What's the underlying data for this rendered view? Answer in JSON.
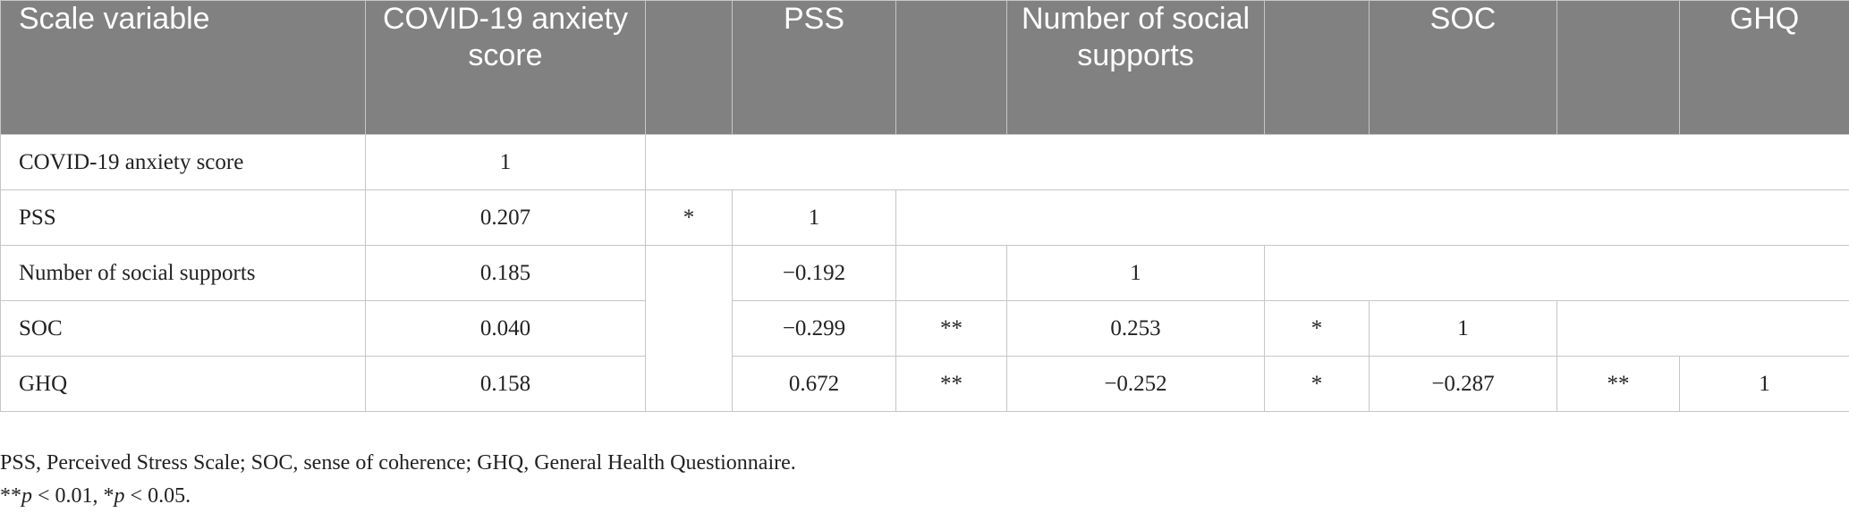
{
  "table": {
    "headers": [
      "Scale variable",
      "COVID-19 anxiety score",
      "",
      "PSS",
      "",
      "Number of social supports",
      "",
      "SOC",
      "",
      "GHQ"
    ],
    "rows": [
      {
        "label": "COVID-19 anxiety score",
        "anxiety": "1"
      },
      {
        "label": "PSS",
        "anxiety": "0.207",
        "anxiety_sig": "*",
        "pss": "1"
      },
      {
        "label": "Number of social supports",
        "anxiety": "0.185",
        "pss": "−0.192",
        "social": "1"
      },
      {
        "label": "SOC",
        "anxiety": "0.040",
        "pss": "−0.299",
        "pss_sig": "**",
        "social": "0.253",
        "social_sig": "*",
        "soc": "1"
      },
      {
        "label": "GHQ",
        "anxiety": "0.158",
        "pss": "0.672",
        "pss_sig": "**",
        "social": "−0.252",
        "social_sig": "*",
        "soc": "−0.287",
        "soc_sig": "**",
        "ghq": "1"
      }
    ]
  },
  "footnotes": {
    "abbreviations": "PSS, Perceived Stress Scale; SOC, sense of coherence; GHQ, General Health Questionnaire.",
    "sig_star2": "**",
    "sig_p": "p",
    "sig_text1": " < 0.01, *",
    "sig_text2": " < 0.05."
  }
}
